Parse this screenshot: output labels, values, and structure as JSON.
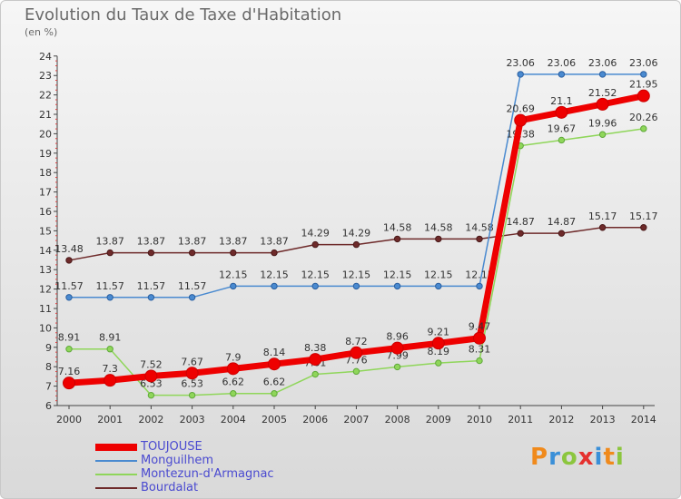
{
  "header": {
    "title": "Evolution du Taux de Taxe d'Habitation",
    "subtitle": "(en %)"
  },
  "logo": {
    "text": "Proxiti"
  },
  "chart_data": {
    "type": "line",
    "title": "Evolution du Taux de Taxe d'Habitation",
    "subtitle": "(en %)",
    "xlabel": "",
    "ylabel": "",
    "x": [
      2000,
      2001,
      2002,
      2003,
      2004,
      2005,
      2006,
      2007,
      2008,
      2009,
      2010,
      2011,
      2012,
      2013,
      2014
    ],
    "x_labels": [
      "2000",
      "2001",
      "2002",
      "2003",
      "2004",
      "2005",
      "2006",
      "2007",
      "2008",
      "2009",
      "2010",
      "2011",
      "2012",
      "2013",
      "2014"
    ],
    "ylim": [
      6,
      24
    ],
    "y_ticks": [
      "6",
      "7",
      "8",
      "9",
      "10",
      "11",
      "12",
      "13",
      "14",
      "15",
      "16",
      "17",
      "18",
      "19",
      "20",
      "21",
      "22",
      "23",
      "24"
    ],
    "grid": false,
    "legend_position": "bottom-left",
    "series": [
      {
        "name": "Bourdalat",
        "color": "#6e2a2a",
        "values": [
          13.48,
          13.87,
          13.87,
          13.87,
          13.87,
          13.87,
          14.29,
          14.29,
          14.58,
          14.58,
          14.58,
          14.87,
          14.87,
          15.17,
          15.17
        ],
        "labels": [
          "13.48",
          "13.87",
          "13.87",
          "13.87",
          "13.87",
          "13.87",
          "14.29",
          "14.29",
          "14.58",
          "14.58",
          "14.58",
          "14.87",
          "14.87",
          "15.17",
          "15.17"
        ]
      },
      {
        "name": "Monguilhem",
        "color": "#4a8ad0",
        "values": [
          11.57,
          11.57,
          11.57,
          11.57,
          12.15,
          12.15,
          12.15,
          12.15,
          12.15,
          12.15,
          12.15,
          23.06,
          23.06,
          23.06,
          23.06
        ],
        "labels": [
          "11.57",
          "11.57",
          "11.57",
          "11.57",
          "12.15",
          "12.15",
          "12.15",
          "12.15",
          "12.15",
          "12.15",
          "12.15",
          "23.06",
          "23.06",
          "23.06",
          "23.06"
        ]
      },
      {
        "name": "Montezun-d'Armagnac",
        "color": "#8fd65a",
        "values": [
          8.91,
          8.91,
          6.53,
          6.53,
          6.62,
          6.62,
          7.61,
          7.76,
          7.99,
          8.19,
          8.31,
          19.38,
          19.67,
          19.96,
          20.26
        ],
        "labels": [
          "8.91",
          "8.91",
          "6.53",
          "6.53",
          "6.62",
          "6.62",
          "7.61",
          "7.76",
          "7.99",
          "8.19",
          "8.31",
          "19.38",
          "19.67",
          "19.96",
          "20.26"
        ]
      },
      {
        "name": "TOUJOUSE",
        "color": "#ee0000",
        "values": [
          7.16,
          7.3,
          7.52,
          7.67,
          7.9,
          8.14,
          8.38,
          8.72,
          8.96,
          9.21,
          9.47,
          20.69,
          21.1,
          21.52,
          21.95
        ],
        "labels": [
          "7.16",
          "7.3",
          "7.52",
          "7.67",
          "7.9",
          "8.14",
          "8.38",
          "8.72",
          "8.96",
          "9.21",
          "9.47",
          "20.69",
          "21.1",
          "21.52",
          "21.95"
        ]
      }
    ]
  },
  "legend": {
    "items": [
      {
        "label": "TOUJOUSE",
        "color": "#ee0000"
      },
      {
        "label": "Monguilhem",
        "color": "#4a8ad0"
      },
      {
        "label": "Montezun-d'Armagnac",
        "color": "#8fd65a"
      },
      {
        "label": "Bourdalat",
        "color": "#6e2a2a"
      }
    ]
  }
}
